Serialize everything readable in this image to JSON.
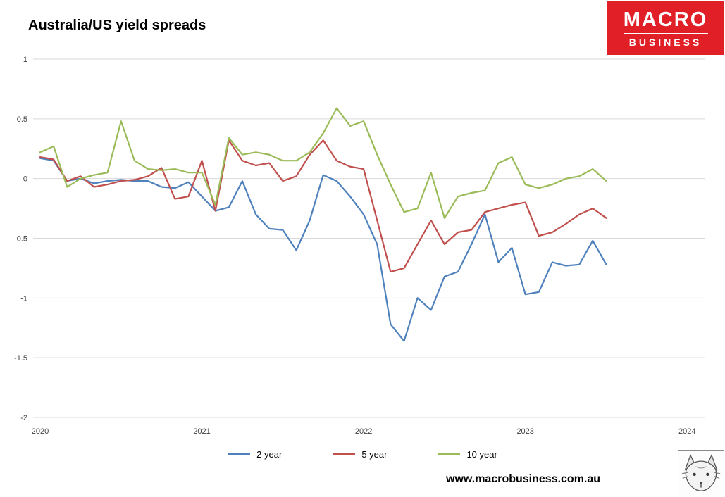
{
  "title": "Australia/US yield spreads",
  "logo": {
    "line1": "MACRO",
    "line2": "BUSINESS",
    "bg_color": "#e01f26",
    "text_color": "#ffffff"
  },
  "footer": {
    "url": "www.macrobusiness.com.au"
  },
  "chart_data": {
    "type": "line",
    "title": "Australia/US yield spreads",
    "frequency": "monthly",
    "x_start": "2020-01",
    "x_end": "2023-07",
    "x_tick_labels": [
      "2020",
      "2021",
      "2022",
      "2023",
      "2024"
    ],
    "x_tick_month_index": [
      0,
      12,
      24,
      36,
      48
    ],
    "y_ticks": [
      1,
      0.5,
      0,
      -0.5,
      -1,
      -1.5,
      -2
    ],
    "ylim": [
      -2,
      1
    ],
    "grid": "horizontal",
    "grid_color": "#d9d9d9",
    "tick_color": "#404040",
    "legend_position": "bottom",
    "series": [
      {
        "name": "2 year",
        "color": "#4F81BD",
        "values": [
          0.17,
          0.15,
          -0.02,
          0.0,
          -0.04,
          -0.02,
          -0.01,
          -0.02,
          -0.02,
          -0.07,
          -0.08,
          -0.03,
          -0.15,
          -0.27,
          -0.24,
          -0.02,
          -0.3,
          -0.42,
          -0.43,
          -0.6,
          -0.35,
          0.03,
          -0.02,
          -0.15,
          -0.3,
          -0.55,
          -1.22,
          -1.36,
          -1.0,
          -1.1,
          -0.82,
          -0.78,
          -0.55,
          -0.3,
          -0.7,
          -0.58,
          -0.97,
          -0.95,
          -0.7,
          -0.73,
          -0.72,
          -0.52,
          -0.72
        ]
      },
      {
        "name": "5 year",
        "color": "#C0504D",
        "values": [
          0.18,
          0.16,
          -0.02,
          0.02,
          -0.07,
          -0.05,
          -0.02,
          -0.01,
          0.02,
          0.09,
          -0.17,
          -0.15,
          0.15,
          -0.27,
          0.32,
          0.15,
          0.11,
          0.13,
          -0.02,
          0.02,
          0.2,
          0.32,
          0.15,
          0.1,
          0.08,
          -0.35,
          -0.78,
          -0.75,
          -0.55,
          -0.35,
          -0.55,
          -0.45,
          -0.43,
          -0.28,
          -0.25,
          -0.22,
          -0.2,
          -0.48,
          -0.45,
          -0.38,
          -0.3,
          -0.25,
          -0.33
        ]
      },
      {
        "name": "10 year",
        "color": "#9BBB59",
        "values": [
          0.22,
          0.27,
          -0.07,
          0.0,
          0.03,
          0.05,
          0.48,
          0.15,
          0.08,
          0.07,
          0.08,
          0.05,
          0.05,
          -0.22,
          0.34,
          0.2,
          0.22,
          0.2,
          0.15,
          0.15,
          0.22,
          0.38,
          0.59,
          0.44,
          0.48,
          0.2,
          -0.05,
          -0.28,
          -0.25,
          0.05,
          -0.33,
          -0.15,
          -0.12,
          -0.1,
          0.13,
          0.18,
          -0.05,
          -0.08,
          -0.05,
          0.0,
          0.02,
          0.08,
          -0.02
        ]
      }
    ]
  }
}
